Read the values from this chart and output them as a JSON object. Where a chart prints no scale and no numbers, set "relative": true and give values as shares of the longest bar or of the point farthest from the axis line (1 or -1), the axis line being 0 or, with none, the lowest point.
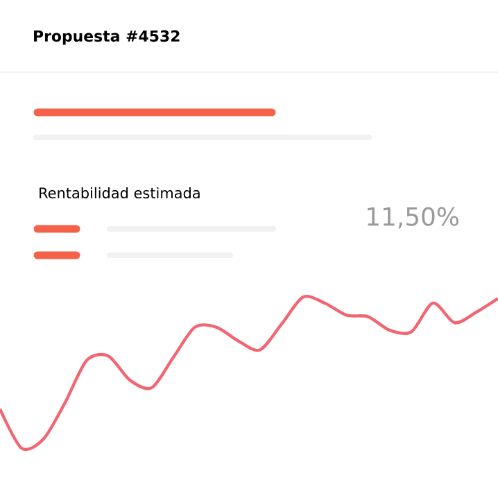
{
  "chart_data": {
    "type": "line",
    "relative": true,
    "title": "Propuesta #4532",
    "annotations": [
      "Rentabilidad estimada",
      "11,50%"
    ],
    "categories": [
      null,
      null,
      null,
      null,
      null,
      null,
      null,
      null,
      null,
      null,
      null,
      null,
      null,
      null,
      null,
      null,
      null,
      null,
      null,
      null,
      null,
      null,
      null,
      null
    ],
    "series": [
      {
        "color": "#f26673",
        "values": [
          0.26,
          0,
          0.06,
          0.3,
          0.58,
          0.61,
          0.45,
          0.4,
          0.6,
          0.8,
          0.8,
          0.71,
          0.65,
          0.82,
          1,
          0.96,
          0.88,
          0.87,
          0.78,
          0.77,
          0.96,
          0.83,
          0.9,
          0.99
        ]
      }
    ]
  }
}
